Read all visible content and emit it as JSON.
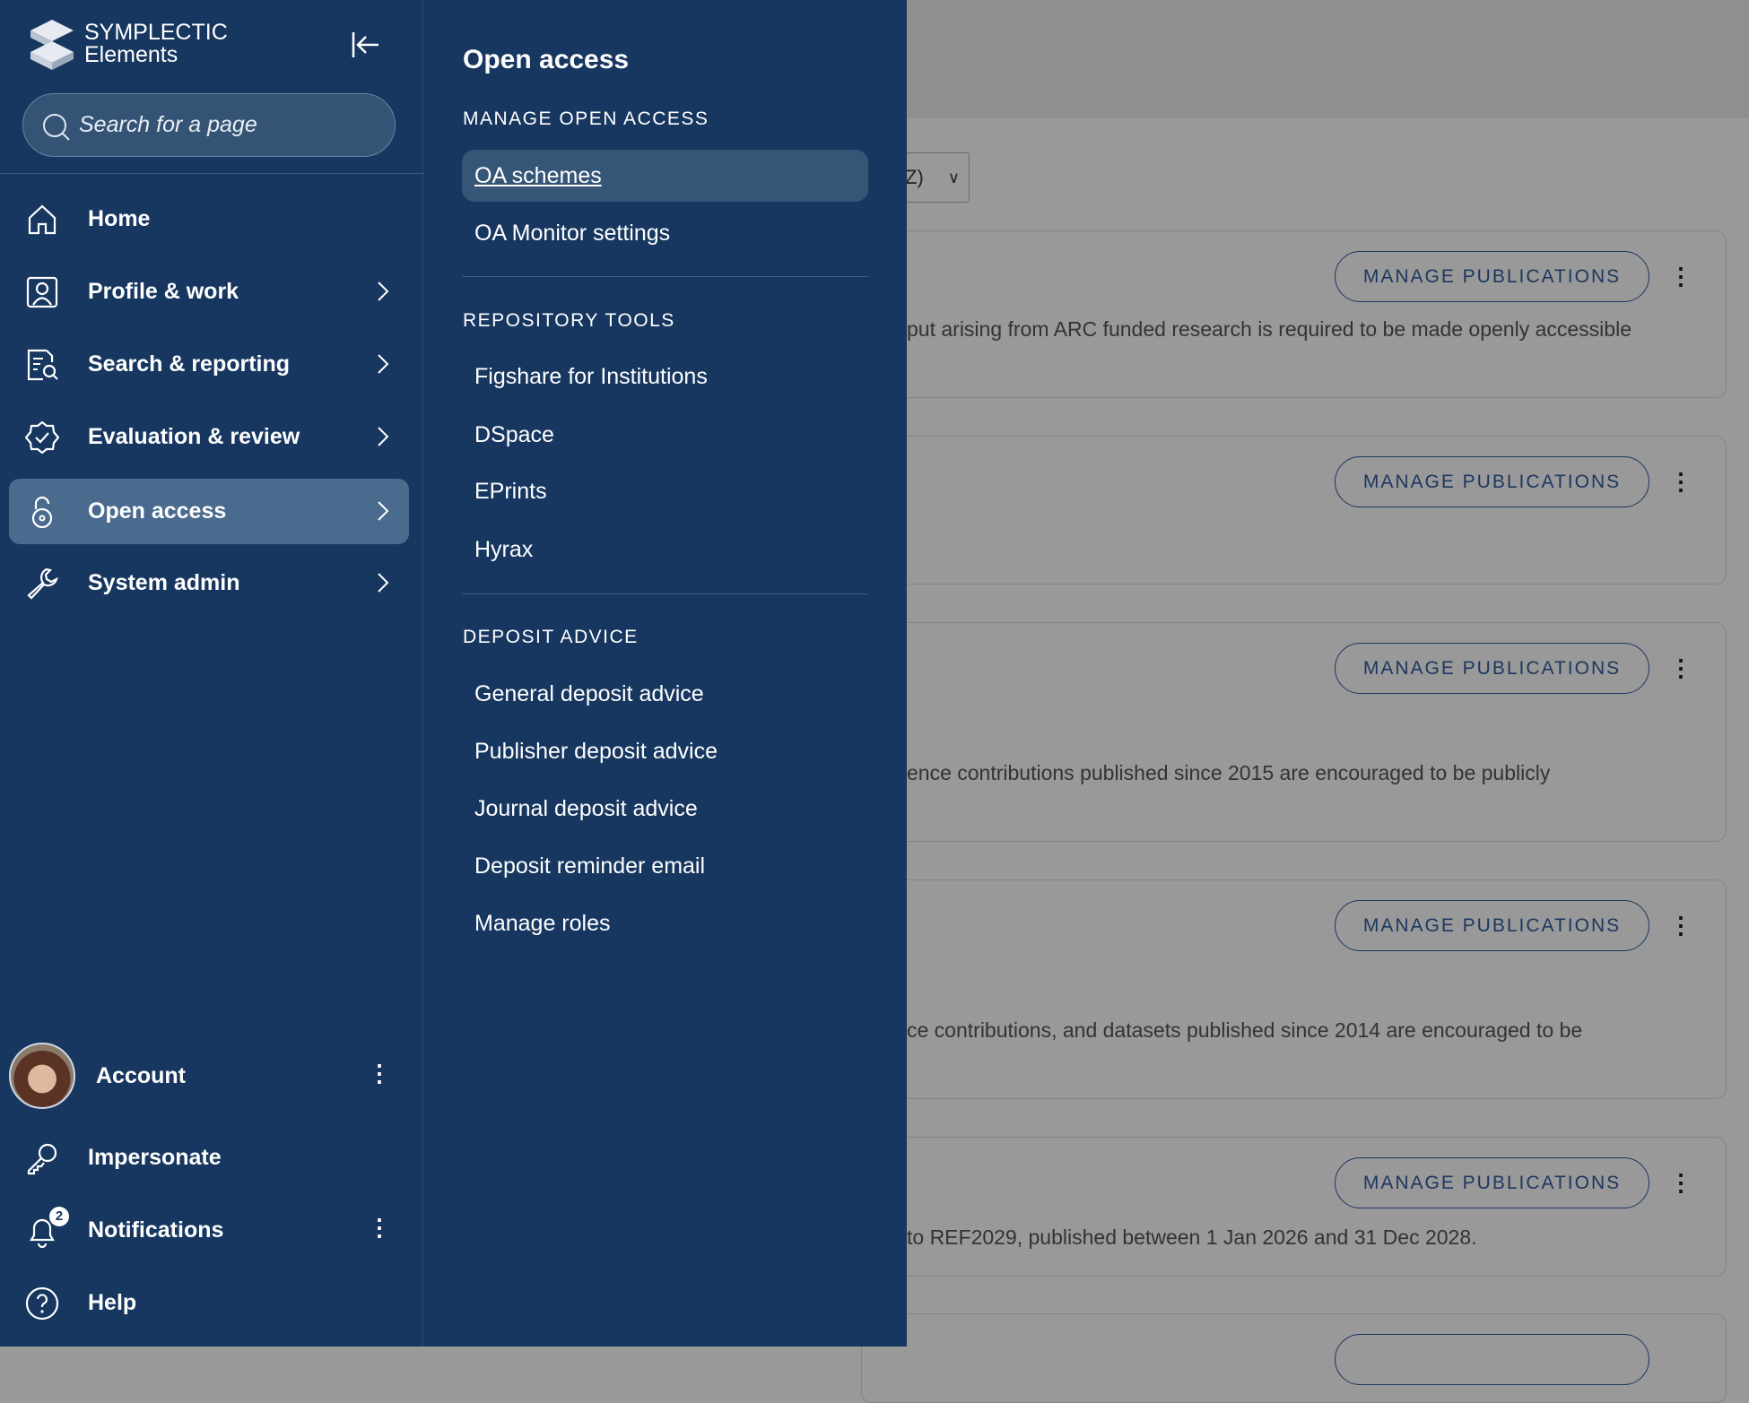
{
  "brand": {
    "line1": "SYMPLECTIC",
    "line2": "Elements"
  },
  "search": {
    "placeholder": "Search for a page"
  },
  "nav": [
    {
      "label": "Home",
      "icon": "home-icon"
    },
    {
      "label": "Profile & work",
      "icon": "profile-icon"
    },
    {
      "label": "Search & reporting",
      "icon": "report-search-icon"
    },
    {
      "label": "Evaluation & review",
      "icon": "badge-check-icon"
    },
    {
      "label": "Open access",
      "icon": "open-lock-icon",
      "active": true
    },
    {
      "label": "System admin",
      "icon": "wrench-icon"
    }
  ],
  "bottom": {
    "account": "Account",
    "impersonate": "Impersonate",
    "notifications": "Notifications",
    "notification_count": "2",
    "help": "Help"
  },
  "panel": {
    "title": "Open access",
    "sections": [
      {
        "heading": "MANAGE OPEN ACCESS",
        "items": [
          "OA schemes",
          "OA Monitor settings"
        ]
      },
      {
        "heading": "REPOSITORY TOOLS",
        "items": [
          "Figshare for Institutions",
          "DSpace",
          "EPrints",
          "Hyrax"
        ]
      },
      {
        "heading": "DEPOSIT ADVICE",
        "items": [
          "General deposit advice",
          "Publisher deposit advice",
          "Journal deposit advice",
          "Deposit reminder email",
          "Manage roles"
        ]
      }
    ]
  },
  "main": {
    "sort_select": "Z)",
    "button_label": "MANAGE PUBLICATIONS",
    "cards": [
      {
        "text": "put arising from ARC funded research is required to be made openly accessible"
      },
      {
        "text": ""
      },
      {
        "text": "ence contributions published since 2015 are encouraged to be publicly"
      },
      {
        "text": "ce contributions, and datasets published since 2014 are encouraged to be"
      },
      {
        "text": "to REF2029, published between 1 Jan 2026 and 31 Dec 2028."
      }
    ]
  },
  "colors": {
    "sidebar": "#173760",
    "active": "#4a6a8e",
    "overlay": "#999999",
    "button": "#1d3760"
  }
}
